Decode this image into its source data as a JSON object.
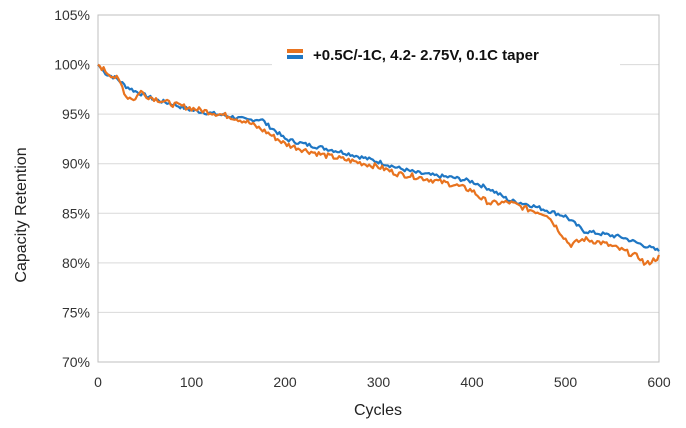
{
  "chart_data": {
    "type": "line",
    "title": "",
    "xlabel": "Cycles",
    "ylabel": "Capacity Retention",
    "xlim": [
      0,
      600
    ],
    "ylim": [
      70,
      105
    ],
    "xticks": [
      "0",
      "100",
      "200",
      "300",
      "400",
      "500",
      "600"
    ],
    "xtick_values": [
      0,
      100,
      200,
      300,
      400,
      500,
      600
    ],
    "yticks": [
      "70%",
      "75%",
      "80%",
      "85%",
      "90%",
      "95%",
      "100%",
      "105%"
    ],
    "ytick_values": [
      70,
      75,
      80,
      85,
      90,
      95,
      100,
      105
    ],
    "grid": "horizontal",
    "legend": {
      "placement": "top-right",
      "label": "+0.5C/-1C, 4.2- 2.75V, 0.1C taper"
    },
    "series": [
      {
        "name": "+0.5C/-1C, 4.2- 2.75V, 0.1C taper",
        "color": "#1f77c4",
        "x": [
          0,
          5,
          10,
          20,
          30,
          40,
          50,
          60,
          80,
          100,
          120,
          140,
          160,
          175,
          180,
          190,
          200,
          220,
          240,
          260,
          280,
          300,
          320,
          340,
          360,
          380,
          400,
          420,
          440,
          460,
          480,
          500,
          520,
          540,
          560,
          580,
          600
        ],
        "values": [
          100,
          99.4,
          99.0,
          98.6,
          97.8,
          97.3,
          96.9,
          96.5,
          96.0,
          95.4,
          95.1,
          94.8,
          94.4,
          94.5,
          94.0,
          93.3,
          92.5,
          92.0,
          91.6,
          91.2,
          90.7,
          90.2,
          89.6,
          89.1,
          88.8,
          88.6,
          88.2,
          87.4,
          86.3,
          85.9,
          85.3,
          84.7,
          83.2,
          82.9,
          82.6,
          81.9,
          81.2
        ]
      },
      {
        "name": "",
        "color": "#e8731f",
        "x": [
          0,
          5,
          10,
          20,
          25,
          30,
          40,
          45,
          50,
          60,
          70,
          80,
          100,
          120,
          140,
          160,
          180,
          190,
          200,
          220,
          240,
          260,
          280,
          300,
          320,
          340,
          360,
          380,
          400,
          410,
          420,
          440,
          460,
          480,
          500,
          505,
          520,
          540,
          560,
          580,
          585,
          600
        ],
        "values": [
          100,
          99.6,
          99.2,
          98.6,
          98.0,
          96.8,
          96.5,
          97.4,
          96.9,
          96.6,
          96.3,
          96.0,
          95.6,
          95.2,
          94.8,
          94.2,
          93.2,
          92.6,
          92.0,
          91.4,
          90.9,
          90.5,
          90.1,
          89.7,
          89.0,
          88.7,
          88.3,
          87.9,
          87.3,
          86.5,
          86.0,
          86.1,
          85.4,
          84.9,
          82.4,
          81.8,
          82.4,
          82.0,
          81.3,
          80.5,
          79.8,
          80.6
        ]
      }
    ]
  }
}
